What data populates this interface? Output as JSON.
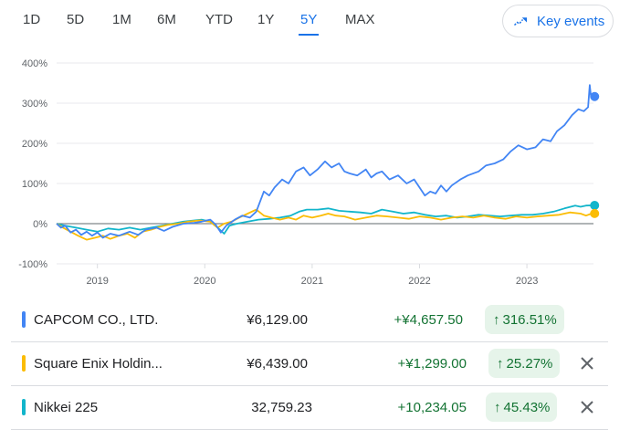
{
  "ranges": [
    "1D",
    "5D",
    "1M",
    "6M",
    "YTD",
    "1Y",
    "5Y",
    "MAX"
  ],
  "active_range": "5Y",
  "key_events_label": "Key events",
  "chart_data": {
    "type": "line",
    "y_ticks": [
      "400%",
      "300%",
      "200%",
      "100%",
      "0%",
      "-100%"
    ],
    "ylim": [
      -100,
      400
    ],
    "x_ticks": [
      "2019",
      "2020",
      "2021",
      "2022",
      "2023"
    ],
    "xlim": [
      2018.62,
      2023.62
    ],
    "baseline": 0,
    "series": [
      {
        "name": "CAPCOM CO., LTD.",
        "color": "#4285f4",
        "end_value": 316.51,
        "points": [
          [
            2018.62,
            0
          ],
          [
            2018.66,
            -10
          ],
          [
            2018.7,
            -5
          ],
          [
            2018.75,
            -22
          ],
          [
            2018.8,
            -15
          ],
          [
            2018.85,
            -28
          ],
          [
            2018.9,
            -20
          ],
          [
            2018.95,
            -30
          ],
          [
            2019.0,
            -22
          ],
          [
            2019.05,
            -35
          ],
          [
            2019.12,
            -25
          ],
          [
            2019.2,
            -30
          ],
          [
            2019.3,
            -20
          ],
          [
            2019.38,
            -28
          ],
          [
            2019.45,
            -15
          ],
          [
            2019.55,
            -10
          ],
          [
            2019.62,
            -18
          ],
          [
            2019.7,
            -8
          ],
          [
            2019.8,
            0
          ],
          [
            2019.9,
            2
          ],
          [
            2019.97,
            5
          ],
          [
            2020.05,
            10
          ],
          [
            2020.1,
            -2
          ],
          [
            2020.15,
            -22
          ],
          [
            2020.2,
            -5
          ],
          [
            2020.28,
            10
          ],
          [
            2020.35,
            20
          ],
          [
            2020.42,
            15
          ],
          [
            2020.48,
            30
          ],
          [
            2020.55,
            80
          ],
          [
            2020.6,
            70
          ],
          [
            2020.65,
            90
          ],
          [
            2020.72,
            110
          ],
          [
            2020.78,
            100
          ],
          [
            2020.85,
            130
          ],
          [
            2020.92,
            140
          ],
          [
            2020.98,
            120
          ],
          [
            2021.05,
            135
          ],
          [
            2021.12,
            155
          ],
          [
            2021.18,
            140
          ],
          [
            2021.25,
            150
          ],
          [
            2021.3,
            130
          ],
          [
            2021.35,
            125
          ],
          [
            2021.42,
            120
          ],
          [
            2021.5,
            135
          ],
          [
            2021.55,
            115
          ],
          [
            2021.6,
            125
          ],
          [
            2021.65,
            130
          ],
          [
            2021.72,
            110
          ],
          [
            2021.8,
            120
          ],
          [
            2021.88,
            100
          ],
          [
            2021.95,
            110
          ],
          [
            2022.0,
            90
          ],
          [
            2022.05,
            70
          ],
          [
            2022.1,
            80
          ],
          [
            2022.15,
            75
          ],
          [
            2022.2,
            95
          ],
          [
            2022.25,
            80
          ],
          [
            2022.3,
            95
          ],
          [
            2022.38,
            110
          ],
          [
            2022.45,
            120
          ],
          [
            2022.55,
            130
          ],
          [
            2022.62,
            145
          ],
          [
            2022.7,
            150
          ],
          [
            2022.78,
            160
          ],
          [
            2022.85,
            180
          ],
          [
            2022.92,
            195
          ],
          [
            2023.0,
            185
          ],
          [
            2023.08,
            190
          ],
          [
            2023.15,
            210
          ],
          [
            2023.22,
            205
          ],
          [
            2023.28,
            230
          ],
          [
            2023.35,
            245
          ],
          [
            2023.42,
            270
          ],
          [
            2023.48,
            285
          ],
          [
            2023.53,
            280
          ],
          [
            2023.57,
            290
          ],
          [
            2023.585,
            345
          ],
          [
            2023.595,
            320
          ],
          [
            2023.605,
            316.51
          ]
        ]
      },
      {
        "name": "Square Enix Holdin...",
        "color": "#fbbc04",
        "end_value": 25.27,
        "points": [
          [
            2018.62,
            0
          ],
          [
            2018.68,
            -10
          ],
          [
            2018.75,
            -20
          ],
          [
            2018.82,
            -30
          ],
          [
            2018.9,
            -40
          ],
          [
            2018.98,
            -35
          ],
          [
            2019.05,
            -30
          ],
          [
            2019.12,
            -38
          ],
          [
            2019.2,
            -30
          ],
          [
            2019.28,
            -25
          ],
          [
            2019.35,
            -35
          ],
          [
            2019.42,
            -20
          ],
          [
            2019.5,
            -15
          ],
          [
            2019.58,
            -8
          ],
          [
            2019.66,
            -3
          ],
          [
            2019.75,
            0
          ],
          [
            2019.85,
            5
          ],
          [
            2019.95,
            8
          ],
          [
            2020.05,
            5
          ],
          [
            2020.12,
            -10
          ],
          [
            2020.18,
            0
          ],
          [
            2020.25,
            5
          ],
          [
            2020.32,
            15
          ],
          [
            2020.4,
            25
          ],
          [
            2020.48,
            35
          ],
          [
            2020.55,
            20
          ],
          [
            2020.62,
            15
          ],
          [
            2020.7,
            10
          ],
          [
            2020.78,
            15
          ],
          [
            2020.85,
            10
          ],
          [
            2020.92,
            20
          ],
          [
            2021.0,
            15
          ],
          [
            2021.08,
            20
          ],
          [
            2021.15,
            25
          ],
          [
            2021.22,
            20
          ],
          [
            2021.3,
            18
          ],
          [
            2021.4,
            10
          ],
          [
            2021.5,
            15
          ],
          [
            2021.6,
            20
          ],
          [
            2021.7,
            18
          ],
          [
            2021.8,
            15
          ],
          [
            2021.9,
            12
          ],
          [
            2022.0,
            18
          ],
          [
            2022.1,
            15
          ],
          [
            2022.2,
            10
          ],
          [
            2022.3,
            15
          ],
          [
            2022.4,
            18
          ],
          [
            2022.5,
            15
          ],
          [
            2022.6,
            20
          ],
          [
            2022.7,
            15
          ],
          [
            2022.8,
            12
          ],
          [
            2022.9,
            18
          ],
          [
            2023.0,
            15
          ],
          [
            2023.1,
            18
          ],
          [
            2023.2,
            20
          ],
          [
            2023.3,
            22
          ],
          [
            2023.4,
            28
          ],
          [
            2023.5,
            25
          ],
          [
            2023.55,
            20
          ],
          [
            2023.605,
            25.27
          ]
        ]
      },
      {
        "name": "Nikkei 225",
        "color": "#12b5cb",
        "end_value": 45.43,
        "points": [
          [
            2018.62,
            0
          ],
          [
            2018.7,
            -5
          ],
          [
            2018.8,
            -10
          ],
          [
            2018.9,
            -15
          ],
          [
            2019.0,
            -20
          ],
          [
            2019.1,
            -12
          ],
          [
            2019.2,
            -15
          ],
          [
            2019.3,
            -10
          ],
          [
            2019.4,
            -15
          ],
          [
            2019.5,
            -10
          ],
          [
            2019.6,
            -5
          ],
          [
            2019.7,
            0
          ],
          [
            2019.8,
            5
          ],
          [
            2019.9,
            8
          ],
          [
            2019.97,
            10
          ],
          [
            2020.05,
            5
          ],
          [
            2020.12,
            -10
          ],
          [
            2020.18,
            -25
          ],
          [
            2020.23,
            -5
          ],
          [
            2020.3,
            0
          ],
          [
            2020.4,
            5
          ],
          [
            2020.5,
            10
          ],
          [
            2020.6,
            12
          ],
          [
            2020.7,
            15
          ],
          [
            2020.8,
            20
          ],
          [
            2020.88,
            30
          ],
          [
            2020.95,
            35
          ],
          [
            2021.05,
            35
          ],
          [
            2021.15,
            38
          ],
          [
            2021.25,
            32
          ],
          [
            2021.35,
            30
          ],
          [
            2021.45,
            28
          ],
          [
            2021.55,
            25
          ],
          [
            2021.65,
            35
          ],
          [
            2021.75,
            30
          ],
          [
            2021.85,
            25
          ],
          [
            2021.95,
            28
          ],
          [
            2022.05,
            22
          ],
          [
            2022.15,
            18
          ],
          [
            2022.25,
            20
          ],
          [
            2022.35,
            15
          ],
          [
            2022.45,
            18
          ],
          [
            2022.55,
            22
          ],
          [
            2022.65,
            20
          ],
          [
            2022.75,
            18
          ],
          [
            2022.85,
            20
          ],
          [
            2022.95,
            22
          ],
          [
            2023.05,
            22
          ],
          [
            2023.15,
            25
          ],
          [
            2023.25,
            30
          ],
          [
            2023.35,
            38
          ],
          [
            2023.45,
            45
          ],
          [
            2023.5,
            42
          ],
          [
            2023.55,
            45
          ],
          [
            2023.605,
            45.43
          ]
        ]
      }
    ]
  },
  "comparisons": [
    {
      "name": "CAPCOM CO., LTD.",
      "price": "¥6,129.00",
      "change": "+¥4,657.50",
      "percent": "316.51%",
      "color": "#4285f4",
      "removable": false
    },
    {
      "name": "Square Enix Holdin...",
      "price": "¥6,439.00",
      "change": "+¥1,299.00",
      "percent": "25.27%",
      "color": "#fbbc04",
      "removable": true
    },
    {
      "name": "Nikkei 225",
      "price": "32,759.23",
      "change": "+10,234.05",
      "percent": "45.43%",
      "color": "#12b5cb",
      "removable": true
    }
  ],
  "arrow_glyph": "↑",
  "icons": {
    "key_events": "trending-up-icon",
    "remove": "close-icon"
  }
}
